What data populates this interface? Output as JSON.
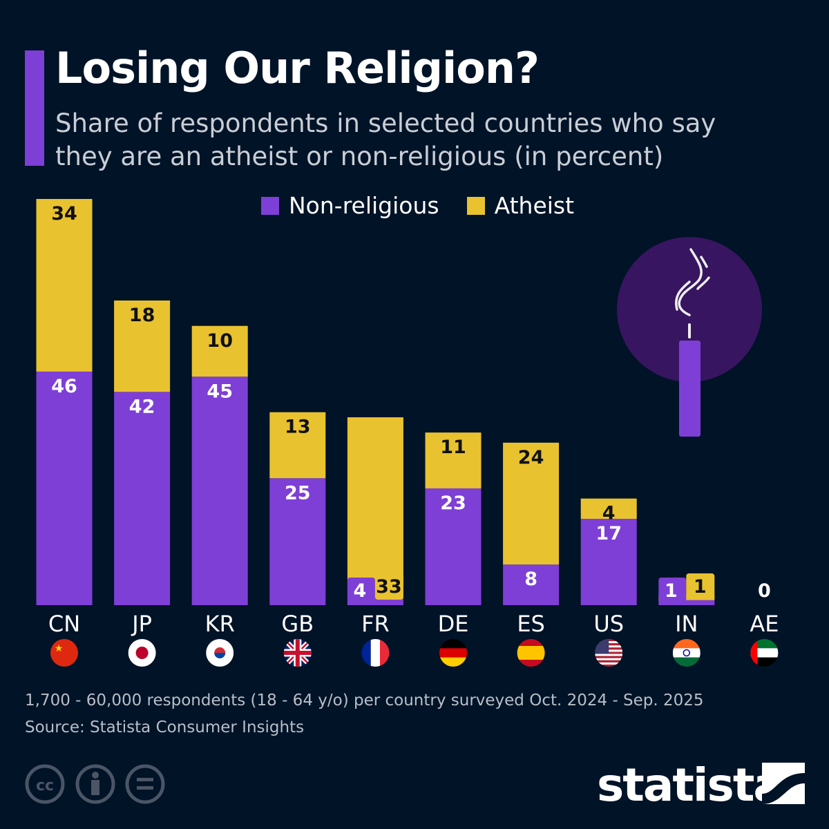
{
  "title": "Losing Our Religion?",
  "subtitle": "Share of respondents in selected countries who say they are an atheist or non-religious (in percent)",
  "colors": {
    "background": "#011327",
    "non_religious": "#7e3fd6",
    "atheist": "#e9c22f"
  },
  "chart_data": {
    "type": "bar",
    "stacked": true,
    "categories": [
      "CN",
      "JP",
      "KR",
      "GB",
      "FR",
      "DE",
      "ES",
      "US",
      "IN",
      "AE"
    ],
    "series": [
      {
        "name": "Non-religious",
        "values": [
          46,
          42,
          45,
          25,
          4,
          23,
          8,
          17,
          1,
          0
        ]
      },
      {
        "name": "Atheist",
        "values": [
          34,
          18,
          10,
          13,
          33,
          11,
          24,
          4,
          1,
          0
        ]
      }
    ],
    "totals_label_zero": "0",
    "legend": "top",
    "grid": false,
    "ylim": [
      0,
      80
    ]
  },
  "flags": [
    "china",
    "japan",
    "south-korea",
    "united-kingdom",
    "france",
    "germany",
    "spain",
    "united-states",
    "india",
    "uae"
  ],
  "footer": {
    "note": "1,700 - 60,000 respondents (18 - 64 y/o) per country surveyed Oct. 2024 - Sep. 2025",
    "source": "Source: Statista Consumer Insights",
    "logo": "statista"
  }
}
